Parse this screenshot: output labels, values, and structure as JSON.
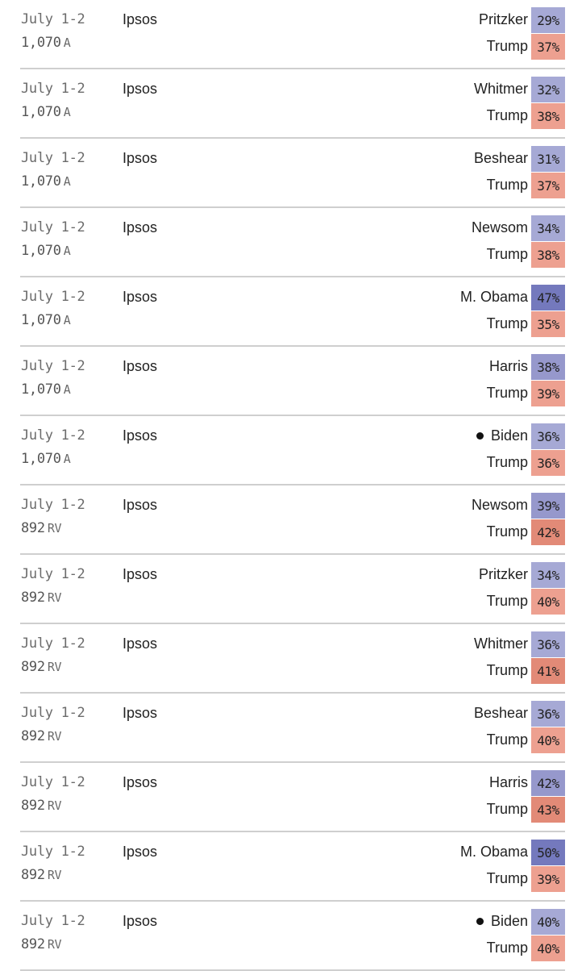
{
  "colors": {
    "dem_light": "#a6a9d5",
    "dem_mid": "#9698cc",
    "dem_dark": "#7479bd",
    "rep_light": "#eda090",
    "rep_dark": "#e28a77",
    "divider": "#cfcfcf"
  },
  "polls": [
    {
      "date": "July 1-2",
      "sample": "1,070",
      "sample_type": "A",
      "pollster": "Ipsos",
      "c1": {
        "name": "Pritzker",
        "pct": "29%",
        "color": "#a6a9d5",
        "leader_dot": false
      },
      "c2": {
        "name": "Trump",
        "pct": "37%",
        "color": "#eda090"
      }
    },
    {
      "date": "July 1-2",
      "sample": "1,070",
      "sample_type": "A",
      "pollster": "Ipsos",
      "c1": {
        "name": "Whitmer",
        "pct": "32%",
        "color": "#a6a9d5",
        "leader_dot": false
      },
      "c2": {
        "name": "Trump",
        "pct": "38%",
        "color": "#eda090"
      }
    },
    {
      "date": "July 1-2",
      "sample": "1,070",
      "sample_type": "A",
      "pollster": "Ipsos",
      "c1": {
        "name": "Beshear",
        "pct": "31%",
        "color": "#a6a9d5",
        "leader_dot": false
      },
      "c2": {
        "name": "Trump",
        "pct": "37%",
        "color": "#eda090"
      }
    },
    {
      "date": "July 1-2",
      "sample": "1,070",
      "sample_type": "A",
      "pollster": "Ipsos",
      "c1": {
        "name": "Newsom",
        "pct": "34%",
        "color": "#a6a9d5",
        "leader_dot": false
      },
      "c2": {
        "name": "Trump",
        "pct": "38%",
        "color": "#eda090"
      }
    },
    {
      "date": "July 1-2",
      "sample": "1,070",
      "sample_type": "A",
      "pollster": "Ipsos",
      "c1": {
        "name": "M. Obama",
        "pct": "47%",
        "color": "#7479bd",
        "leader_dot": false
      },
      "c2": {
        "name": "Trump",
        "pct": "35%",
        "color": "#eda090"
      }
    },
    {
      "date": "July 1-2",
      "sample": "1,070",
      "sample_type": "A",
      "pollster": "Ipsos",
      "c1": {
        "name": "Harris",
        "pct": "38%",
        "color": "#9698cc",
        "leader_dot": false
      },
      "c2": {
        "name": "Trump",
        "pct": "39%",
        "color": "#eda090"
      }
    },
    {
      "date": "July 1-2",
      "sample": "1,070",
      "sample_type": "A",
      "pollster": "Ipsos",
      "c1": {
        "name": "Biden",
        "pct": "36%",
        "color": "#a6a9d5",
        "leader_dot": true
      },
      "c2": {
        "name": "Trump",
        "pct": "36%",
        "color": "#eda090"
      }
    },
    {
      "date": "July 1-2",
      "sample": "892",
      "sample_type": "RV",
      "pollster": "Ipsos",
      "c1": {
        "name": "Newsom",
        "pct": "39%",
        "color": "#9698cc",
        "leader_dot": false
      },
      "c2": {
        "name": "Trump",
        "pct": "42%",
        "color": "#e28a77"
      }
    },
    {
      "date": "July 1-2",
      "sample": "892",
      "sample_type": "RV",
      "pollster": "Ipsos",
      "c1": {
        "name": "Pritzker",
        "pct": "34%",
        "color": "#a6a9d5",
        "leader_dot": false
      },
      "c2": {
        "name": "Trump",
        "pct": "40%",
        "color": "#eda090"
      }
    },
    {
      "date": "July 1-2",
      "sample": "892",
      "sample_type": "RV",
      "pollster": "Ipsos",
      "c1": {
        "name": "Whitmer",
        "pct": "36%",
        "color": "#a6a9d5",
        "leader_dot": false
      },
      "c2": {
        "name": "Trump",
        "pct": "41%",
        "color": "#e28a77"
      }
    },
    {
      "date": "July 1-2",
      "sample": "892",
      "sample_type": "RV",
      "pollster": "Ipsos",
      "c1": {
        "name": "Beshear",
        "pct": "36%",
        "color": "#a6a9d5",
        "leader_dot": false
      },
      "c2": {
        "name": "Trump",
        "pct": "40%",
        "color": "#eda090"
      }
    },
    {
      "date": "July 1-2",
      "sample": "892",
      "sample_type": "RV",
      "pollster": "Ipsos",
      "c1": {
        "name": "Harris",
        "pct": "42%",
        "color": "#9698cc",
        "leader_dot": false
      },
      "c2": {
        "name": "Trump",
        "pct": "43%",
        "color": "#e28a77"
      }
    },
    {
      "date": "July 1-2",
      "sample": "892",
      "sample_type": "RV",
      "pollster": "Ipsos",
      "c1": {
        "name": "M. Obama",
        "pct": "50%",
        "color": "#7479bd",
        "leader_dot": false
      },
      "c2": {
        "name": "Trump",
        "pct": "39%",
        "color": "#eda090"
      }
    },
    {
      "date": "July 1-2",
      "sample": "892",
      "sample_type": "RV",
      "pollster": "Ipsos",
      "c1": {
        "name": "Biden",
        "pct": "40%",
        "color": "#a6a9d5",
        "leader_dot": true
      },
      "c2": {
        "name": "Trump",
        "pct": "40%",
        "color": "#eda090"
      }
    }
  ]
}
